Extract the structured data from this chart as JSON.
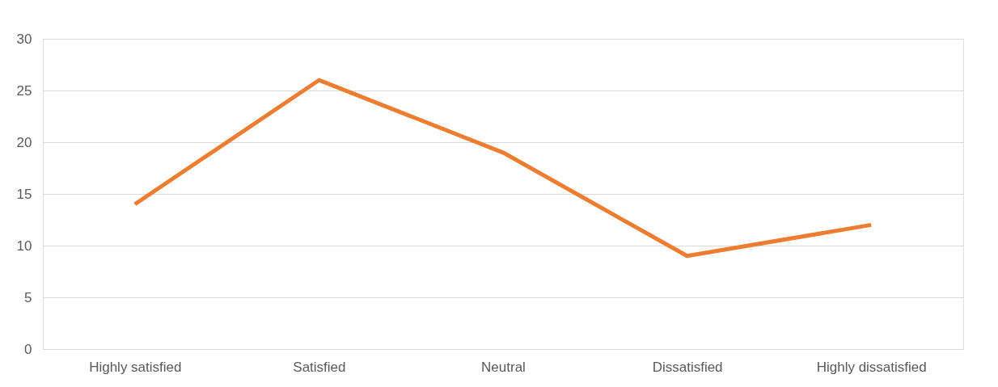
{
  "chart_data": {
    "type": "line",
    "categories": [
      "Highly satisfied",
      "Satisfied",
      "Neutral",
      "Dissatisfied",
      "Highly dissatisfied"
    ],
    "series": [
      {
        "color": "#ed7d31",
        "values": [
          14,
          26,
          19,
          9,
          12
        ]
      }
    ],
    "ylim": [
      0,
      30
    ],
    "yticks": [
      0,
      5,
      10,
      15,
      20,
      25,
      30
    ],
    "grid": "y",
    "marker": "none",
    "line_style": "solid"
  }
}
